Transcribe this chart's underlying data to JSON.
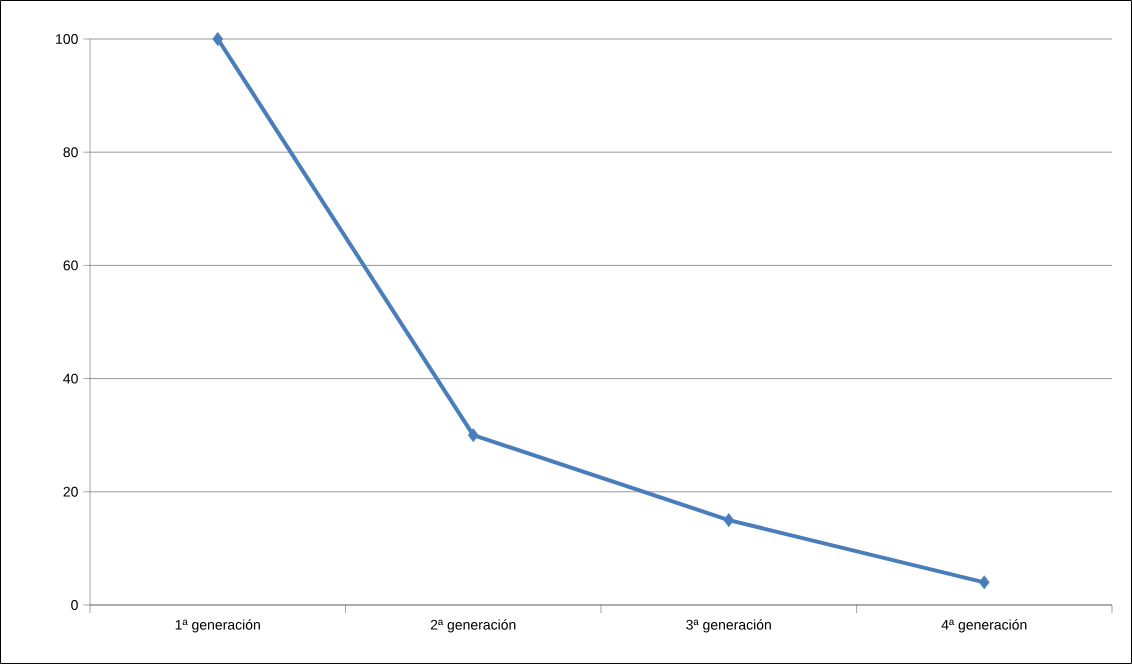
{
  "chart_data": {
    "type": "line",
    "categories": [
      "1ª generación",
      "2ª generación",
      "3ª generación",
      "4ª generación"
    ],
    "series": [
      {
        "color": "#4a7ebb",
        "values": [
          100,
          30,
          15,
          4
        ]
      }
    ],
    "ylim": [
      0,
      100
    ],
    "yticks": [
      0,
      20,
      40,
      60,
      80,
      100
    ],
    "grid": "y",
    "marker": "diamond",
    "line_style": "solid"
  }
}
